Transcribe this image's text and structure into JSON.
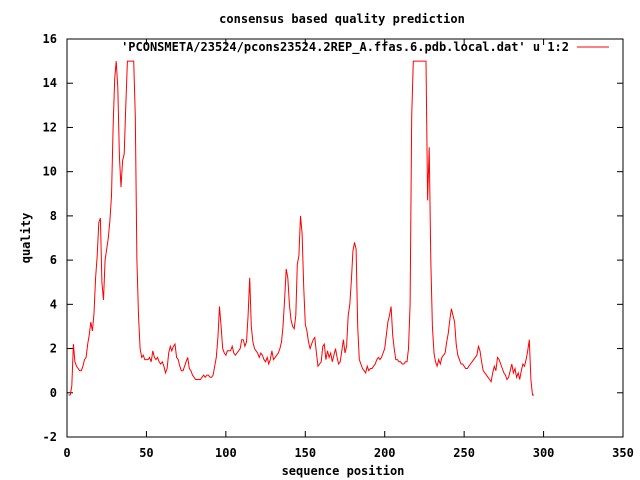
{
  "chart_data": {
    "type": "line",
    "title": "consensus based quality prediction",
    "xlabel": "sequence position",
    "ylabel": "quality",
    "xlim": [
      0,
      350
    ],
    "ylim": [
      -2,
      16
    ],
    "xticks": [
      0,
      50,
      100,
      150,
      200,
      250,
      300,
      350
    ],
    "yticks": [
      -2,
      0,
      2,
      4,
      6,
      8,
      10,
      12,
      14,
      16
    ],
    "grid": false,
    "legend_position": "top-right",
    "series": [
      {
        "name": "'PCONSMETA/23524/pcons23524.2REP_A.ffas.6.pdb.local.dat' u 1:2",
        "color": "#ff0000",
        "points": [
          [
            1,
            -0.1
          ],
          [
            2,
            -0.1
          ],
          [
            3,
            0.3
          ],
          [
            4,
            2.2
          ],
          [
            5,
            1.4
          ],
          [
            6,
            1.2
          ],
          [
            7,
            1.1
          ],
          [
            8,
            1.0
          ],
          [
            9,
            1.0
          ],
          [
            10,
            1.2
          ],
          [
            11,
            1.5
          ],
          [
            12,
            1.6
          ],
          [
            13,
            2.2
          ],
          [
            14,
            2.6
          ],
          [
            15,
            3.2
          ],
          [
            16,
            2.8
          ],
          [
            17,
            3.6
          ],
          [
            18,
            5.2
          ],
          [
            19,
            6.2
          ],
          [
            20,
            7.7
          ],
          [
            21,
            7.9
          ],
          [
            22,
            5.0
          ],
          [
            23,
            4.2
          ],
          [
            24,
            6.0
          ],
          [
            25,
            6.5
          ],
          [
            26,
            7.0
          ],
          [
            27,
            7.8
          ],
          [
            28,
            8.9
          ],
          [
            29,
            12.0
          ],
          [
            30,
            14.2
          ],
          [
            31,
            15.0
          ],
          [
            32,
            13.8
          ],
          [
            33,
            10.7
          ],
          [
            34,
            9.3
          ],
          [
            35,
            10.5
          ],
          [
            36,
            10.8
          ],
          [
            37,
            13.0
          ],
          [
            38,
            15.0
          ],
          [
            39,
            15.0
          ],
          [
            40,
            15.0
          ],
          [
            41,
            15.0
          ],
          [
            42,
            15.0
          ],
          [
            43,
            12.5
          ],
          [
            44,
            6.0
          ],
          [
            45,
            3.5
          ],
          [
            46,
            2.0
          ],
          [
            47,
            1.6
          ],
          [
            48,
            1.7
          ],
          [
            49,
            1.5
          ],
          [
            50,
            1.5
          ],
          [
            51,
            1.5
          ],
          [
            52,
            1.6
          ],
          [
            53,
            1.4
          ],
          [
            54,
            1.9
          ],
          [
            55,
            1.6
          ],
          [
            56,
            1.5
          ],
          [
            57,
            1.6
          ],
          [
            58,
            1.4
          ],
          [
            59,
            1.3
          ],
          [
            60,
            1.4
          ],
          [
            61,
            1.2
          ],
          [
            62,
            0.9
          ],
          [
            63,
            1.1
          ],
          [
            64,
            1.8
          ],
          [
            65,
            2.1
          ],
          [
            66,
            1.9
          ],
          [
            67,
            2.1
          ],
          [
            68,
            2.2
          ],
          [
            69,
            1.6
          ],
          [
            70,
            1.5
          ],
          [
            71,
            1.2
          ],
          [
            72,
            1.0
          ],
          [
            73,
            1.0
          ],
          [
            74,
            1.2
          ],
          [
            75,
            1.4
          ],
          [
            76,
            1.6
          ],
          [
            77,
            1.1
          ],
          [
            78,
            1.0
          ],
          [
            79,
            0.8
          ],
          [
            80,
            0.7
          ],
          [
            81,
            0.6
          ],
          [
            82,
            0.6
          ],
          [
            83,
            0.6
          ],
          [
            84,
            0.6
          ],
          [
            85,
            0.7
          ],
          [
            86,
            0.8
          ],
          [
            87,
            0.7
          ],
          [
            88,
            0.8
          ],
          [
            89,
            0.8
          ],
          [
            90,
            0.7
          ],
          [
            91,
            0.7
          ],
          [
            92,
            0.8
          ],
          [
            93,
            1.2
          ],
          [
            94,
            1.6
          ],
          [
            95,
            2.5
          ],
          [
            96,
            3.9
          ],
          [
            97,
            3.0
          ],
          [
            98,
            2.0
          ],
          [
            99,
            1.8
          ],
          [
            100,
            1.7
          ],
          [
            101,
            1.9
          ],
          [
            102,
            1.9
          ],
          [
            103,
            1.9
          ],
          [
            104,
            2.1
          ],
          [
            105,
            1.8
          ],
          [
            106,
            1.7
          ],
          [
            107,
            1.8
          ],
          [
            108,
            1.9
          ],
          [
            109,
            2.0
          ],
          [
            110,
            2.4
          ],
          [
            111,
            2.4
          ],
          [
            112,
            2.1
          ],
          [
            113,
            2.3
          ],
          [
            114,
            3.5
          ],
          [
            115,
            5.2
          ],
          [
            116,
            3.0
          ],
          [
            117,
            2.3
          ],
          [
            118,
            2.0
          ],
          [
            119,
            1.9
          ],
          [
            120,
            1.8
          ],
          [
            121,
            1.6
          ],
          [
            122,
            1.8
          ],
          [
            123,
            1.7
          ],
          [
            124,
            1.5
          ],
          [
            125,
            1.4
          ],
          [
            126,
            1.6
          ],
          [
            127,
            1.3
          ],
          [
            128,
            1.5
          ],
          [
            129,
            1.9
          ],
          [
            130,
            1.5
          ],
          [
            131,
            1.6
          ],
          [
            132,
            1.7
          ],
          [
            133,
            1.8
          ],
          [
            134,
            2.0
          ],
          [
            135,
            2.3
          ],
          [
            136,
            3.0
          ],
          [
            137,
            4.2
          ],
          [
            138,
            5.6
          ],
          [
            139,
            5.2
          ],
          [
            140,
            4.0
          ],
          [
            141,
            3.3
          ],
          [
            142,
            3.0
          ],
          [
            143,
            2.9
          ],
          [
            144,
            3.5
          ],
          [
            145,
            5.8
          ],
          [
            146,
            6.2
          ],
          [
            147,
            8.0
          ],
          [
            148,
            7.2
          ],
          [
            149,
            4.8
          ],
          [
            150,
            3.1
          ],
          [
            151,
            2.8
          ],
          [
            152,
            2.3
          ],
          [
            153,
            2.0
          ],
          [
            154,
            2.2
          ],
          [
            155,
            2.4
          ],
          [
            156,
            2.5
          ],
          [
            157,
            1.8
          ],
          [
            158,
            1.2
          ],
          [
            159,
            1.3
          ],
          [
            160,
            1.4
          ],
          [
            161,
            2.1
          ],
          [
            162,
            2.2
          ],
          [
            163,
            1.5
          ],
          [
            164,
            1.9
          ],
          [
            165,
            1.6
          ],
          [
            166,
            1.8
          ],
          [
            167,
            1.4
          ],
          [
            168,
            1.7
          ],
          [
            169,
            2.0
          ],
          [
            170,
            1.6
          ],
          [
            171,
            1.3
          ],
          [
            172,
            1.4
          ],
          [
            173,
            1.9
          ],
          [
            174,
            2.4
          ],
          [
            175,
            1.8
          ],
          [
            176,
            2.1
          ],
          [
            177,
            3.5
          ],
          [
            178,
            4.0
          ],
          [
            179,
            5.1
          ],
          [
            180,
            6.4
          ],
          [
            181,
            6.8
          ],
          [
            182,
            6.5
          ],
          [
            183,
            3.0
          ],
          [
            184,
            1.5
          ],
          [
            185,
            1.3
          ],
          [
            186,
            1.1
          ],
          [
            187,
            1.0
          ],
          [
            188,
            0.9
          ],
          [
            189,
            1.2
          ],
          [
            190,
            1.0
          ],
          [
            191,
            1.1
          ],
          [
            192,
            1.1
          ],
          [
            193,
            1.2
          ],
          [
            194,
            1.3
          ],
          [
            195,
            1.5
          ],
          [
            196,
            1.6
          ],
          [
            197,
            1.5
          ],
          [
            198,
            1.6
          ],
          [
            199,
            1.8
          ],
          [
            200,
            2.0
          ],
          [
            201,
            2.6
          ],
          [
            202,
            3.2
          ],
          [
            203,
            3.5
          ],
          [
            204,
            3.9
          ],
          [
            205,
            2.6
          ],
          [
            206,
            2.0
          ],
          [
            207,
            1.5
          ],
          [
            208,
            1.5
          ],
          [
            209,
            1.4
          ],
          [
            210,
            1.4
          ],
          [
            211,
            1.3
          ],
          [
            212,
            1.3
          ],
          [
            213,
            1.4
          ],
          [
            214,
            1.4
          ],
          [
            215,
            2.0
          ],
          [
            216,
            4.0
          ],
          [
            217,
            12.5
          ],
          [
            218,
            15.0
          ],
          [
            219,
            15.0
          ],
          [
            220,
            15.0
          ],
          [
            221,
            15.0
          ],
          [
            222,
            15.0
          ],
          [
            223,
            15.0
          ],
          [
            224,
            15.0
          ],
          [
            225,
            15.0
          ],
          [
            226,
            15.0
          ],
          [
            227,
            8.7
          ],
          [
            228,
            11.1
          ],
          [
            229,
            6.0
          ],
          [
            230,
            3.0
          ],
          [
            231,
            1.8
          ],
          [
            232,
            1.4
          ],
          [
            233,
            1.2
          ],
          [
            234,
            1.5
          ],
          [
            235,
            1.3
          ],
          [
            236,
            1.6
          ],
          [
            237,
            1.7
          ],
          [
            238,
            1.8
          ],
          [
            239,
            2.3
          ],
          [
            240,
            2.7
          ],
          [
            241,
            3.3
          ],
          [
            242,
            3.8
          ],
          [
            243,
            3.5
          ],
          [
            244,
            3.2
          ],
          [
            245,
            2.2
          ],
          [
            246,
            1.7
          ],
          [
            247,
            1.5
          ],
          [
            248,
            1.3
          ],
          [
            249,
            1.3
          ],
          [
            250,
            1.2
          ],
          [
            251,
            1.1
          ],
          [
            252,
            1.1
          ],
          [
            253,
            1.2
          ],
          [
            254,
            1.3
          ],
          [
            255,
            1.4
          ],
          [
            256,
            1.5
          ],
          [
            257,
            1.6
          ],
          [
            258,
            1.7
          ],
          [
            259,
            2.1
          ],
          [
            260,
            1.9
          ],
          [
            261,
            1.4
          ],
          [
            262,
            1.0
          ],
          [
            263,
            0.9
          ],
          [
            264,
            0.8
          ],
          [
            265,
            0.7
          ],
          [
            266,
            0.6
          ],
          [
            267,
            0.5
          ],
          [
            268,
            0.9
          ],
          [
            269,
            1.2
          ],
          [
            270,
            1.0
          ],
          [
            271,
            1.6
          ],
          [
            272,
            1.5
          ],
          [
            273,
            1.3
          ],
          [
            274,
            1.1
          ],
          [
            275,
            0.9
          ],
          [
            276,
            0.8
          ],
          [
            277,
            0.6
          ],
          [
            278,
            0.7
          ],
          [
            279,
            1.0
          ],
          [
            280,
            1.3
          ],
          [
            281,
            0.9
          ],
          [
            282,
            1.1
          ],
          [
            283,
            0.7
          ],
          [
            284,
            0.9
          ],
          [
            285,
            0.6
          ],
          [
            286,
            1.0
          ],
          [
            287,
            1.3
          ],
          [
            288,
            1.2
          ],
          [
            289,
            1.5
          ],
          [
            290,
            1.9
          ],
          [
            291,
            2.4
          ],
          [
            292,
            0.6
          ],
          [
            293,
            -0.1
          ],
          [
            294,
            -0.1
          ]
        ]
      }
    ]
  }
}
